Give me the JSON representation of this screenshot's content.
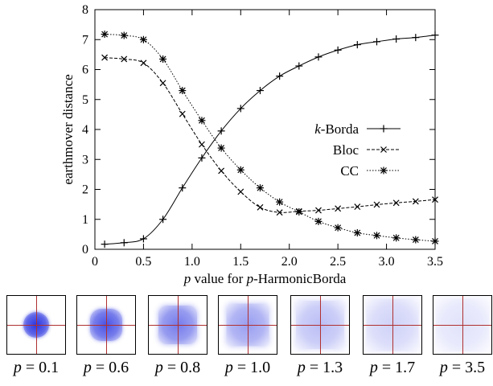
{
  "chart_data": {
    "type": "line",
    "xlabel_parts": {
      "var": "p",
      "rest": " value for ",
      "var2": "p",
      "rest2": "-HarmonicBorda"
    },
    "ylabel": "earthmover distance",
    "xlim": [
      0,
      3.5
    ],
    "ylim": [
      0,
      8
    ],
    "xticks": [
      "0",
      "0.5",
      "1.0",
      "1.5",
      "2.0",
      "2.5",
      "3.0",
      "3.5"
    ],
    "xtick_values": [
      0,
      0.5,
      1.0,
      1.5,
      2.0,
      2.5,
      3.0,
      3.5
    ],
    "yticks": [
      "0",
      "1",
      "2",
      "3",
      "4",
      "5",
      "6",
      "7",
      "8"
    ],
    "ytick_values": [
      0,
      1,
      2,
      3,
      4,
      5,
      6,
      7,
      8
    ],
    "grid": false,
    "legend_position": "right-middle",
    "series": [
      {
        "name": "k-Borda",
        "name_var": "k",
        "name_rest": "-Borda",
        "marker": "plus",
        "line": "solid",
        "x": [
          0.1,
          0.3,
          0.5,
          0.7,
          0.9,
          1.1,
          1.3,
          1.5,
          1.7,
          1.9,
          2.1,
          2.3,
          2.5,
          2.7,
          2.9,
          3.1,
          3.3,
          3.5
        ],
        "y": [
          0.17,
          0.22,
          0.35,
          1.0,
          2.05,
          3.05,
          3.95,
          4.7,
          5.3,
          5.78,
          6.12,
          6.42,
          6.65,
          6.83,
          6.93,
          7.02,
          7.07,
          7.15
        ]
      },
      {
        "name": "Bloc",
        "marker": "cross",
        "line": "dashed",
        "x": [
          0.1,
          0.3,
          0.5,
          0.7,
          0.9,
          1.1,
          1.3,
          1.5,
          1.7,
          1.9,
          2.1,
          2.3,
          2.5,
          2.7,
          2.9,
          3.1,
          3.3,
          3.5
        ],
        "y": [
          6.4,
          6.35,
          6.22,
          5.55,
          4.52,
          3.5,
          2.62,
          1.92,
          1.4,
          1.23,
          1.27,
          1.3,
          1.36,
          1.42,
          1.49,
          1.55,
          1.6,
          1.66
        ]
      },
      {
        "name": "CC",
        "marker": "star",
        "line": "dotted",
        "x": [
          0.1,
          0.3,
          0.5,
          0.7,
          0.9,
          1.1,
          1.3,
          1.5,
          1.7,
          1.9,
          2.1,
          2.3,
          2.5,
          2.7,
          2.9,
          3.1,
          3.3,
          3.5
        ],
        "y": [
          7.18,
          7.14,
          7.0,
          6.35,
          5.3,
          4.3,
          3.38,
          2.65,
          2.05,
          1.58,
          1.25,
          0.93,
          0.72,
          0.55,
          0.46,
          0.38,
          0.32,
          0.27
        ]
      }
    ],
    "series_colors": {
      "line": "#000000"
    }
  },
  "thumbnails": [
    {
      "p_var": "p",
      "eq": " = ",
      "p_value": "0.1",
      "spread": 0.45,
      "square": 0.0,
      "intensity": 1.0
    },
    {
      "p_var": "p",
      "eq": " = ",
      "p_value": "0.6",
      "spread": 0.55,
      "square": 0.3,
      "intensity": 0.85
    },
    {
      "p_var": "p",
      "eq": " = ",
      "p_value": "0.8",
      "spread": 0.66,
      "square": 0.55,
      "intensity": 0.65
    },
    {
      "p_var": "p",
      "eq": " = ",
      "p_value": "1.0",
      "spread": 0.74,
      "square": 0.75,
      "intensity": 0.48
    },
    {
      "p_var": "p",
      "eq": " = ",
      "p_value": "1.3",
      "spread": 0.84,
      "square": 0.9,
      "intensity": 0.32
    },
    {
      "p_var": "p",
      "eq": " = ",
      "p_value": "1.7",
      "spread": 0.9,
      "square": 0.95,
      "intensity": 0.22
    },
    {
      "p_var": "p",
      "eq": " = ",
      "p_value": "3.5",
      "spread": 0.92,
      "square": 1.0,
      "intensity": 0.14
    }
  ],
  "colors": {
    "thumb_blob": "#2a34e0",
    "thumb_cross": "#b03030"
  }
}
